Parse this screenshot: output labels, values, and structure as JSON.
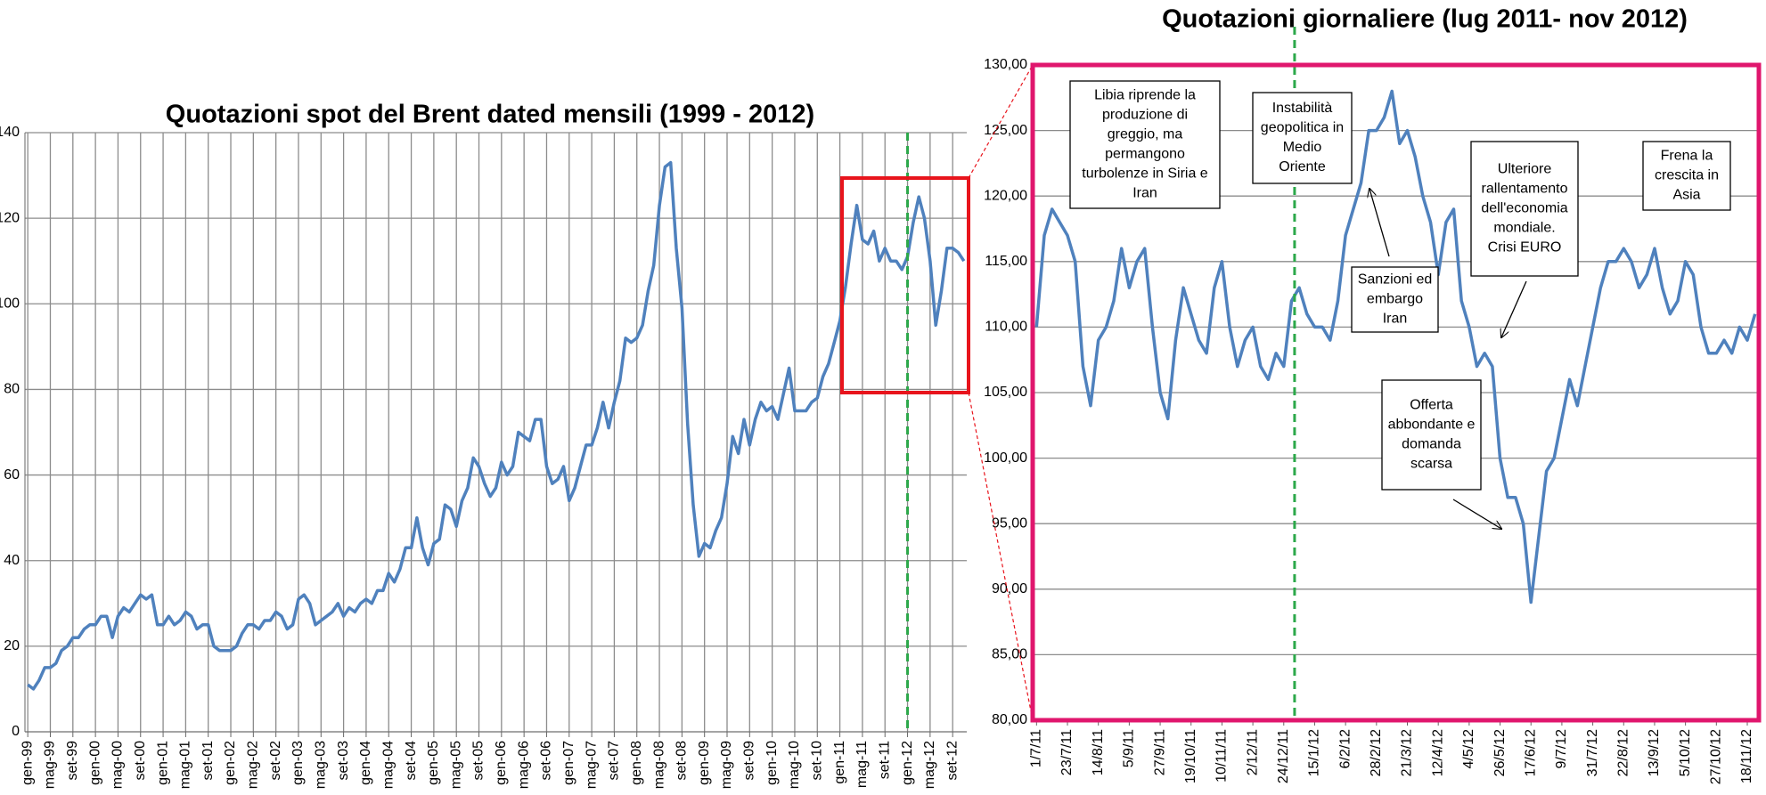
{
  "chart_data": [
    {
      "type": "line",
      "title": "Quotazioni spot del Brent dated mensili  (1999 - 2012)",
      "categories": [
        "gen-99",
        null,
        null,
        null,
        "mag-99",
        null,
        null,
        null,
        "set-99",
        null,
        null,
        null,
        "gen-00",
        null,
        null,
        null,
        "mag-00",
        null,
        null,
        null,
        "set-00",
        null,
        null,
        null,
        "gen-01",
        null,
        null,
        null,
        "mag-01",
        null,
        null,
        null,
        "set-01",
        null,
        null,
        null,
        "gen-02",
        null,
        null,
        null,
        "mag-02",
        null,
        null,
        null,
        "set-02",
        null,
        null,
        null,
        "gen-03",
        null,
        null,
        null,
        "mag-03",
        null,
        null,
        null,
        "set-03",
        null,
        null,
        null,
        "gen-04",
        null,
        null,
        null,
        "mag-04",
        null,
        null,
        null,
        "set-04",
        null,
        null,
        null,
        "gen-05",
        null,
        null,
        null,
        "mag-05",
        null,
        null,
        null,
        "set-05",
        null,
        null,
        null,
        "gen-06",
        null,
        null,
        null,
        "mag-06",
        null,
        null,
        null,
        "set-06",
        null,
        null,
        null,
        "gen-07",
        null,
        null,
        null,
        "mag-07",
        null,
        null,
        null,
        "set-07",
        null,
        null,
        null,
        "gen-08",
        null,
        null,
        null,
        "mag-08",
        null,
        null,
        null,
        "set-08",
        null,
        null,
        null,
        "gen-09",
        null,
        null,
        null,
        "mag-09",
        null,
        null,
        null,
        "set-09",
        null,
        null,
        null,
        "gen-10",
        null,
        null,
        null,
        "mag-10",
        null,
        null,
        null,
        "set-10",
        null,
        null,
        null,
        "gen-11",
        null,
        null,
        null,
        "mag-11",
        null,
        null,
        null,
        "set-11",
        null,
        null,
        null,
        "gen-12",
        null,
        null,
        null,
        "mag-12",
        null,
        null,
        null,
        "set-12",
        null,
        null
      ],
      "series": [
        {
          "name": "Brent",
          "color": "#4f81bd",
          "values": [
            11,
            10,
            12,
            15,
            15,
            16,
            19,
            20,
            22,
            22,
            24,
            25,
            25,
            27,
            27,
            22,
            27,
            29,
            28,
            30,
            32,
            31,
            32,
            25,
            25,
            27,
            25,
            26,
            28,
            27,
            24,
            25,
            25,
            20,
            19,
            19,
            19,
            20,
            23,
            25,
            25,
            24,
            26,
            26,
            28,
            27,
            24,
            25,
            31,
            32,
            30,
            25,
            26,
            27,
            28,
            30,
            27,
            29,
            28,
            30,
            31,
            30,
            33,
            33,
            37,
            35,
            38,
            43,
            43,
            50,
            43,
            39,
            44,
            45,
            53,
            52,
            48,
            54,
            57,
            64,
            62,
            58,
            55,
            57,
            63,
            60,
            62,
            70,
            69,
            68,
            73,
            73,
            62,
            58,
            59,
            62,
            54,
            57,
            62,
            67,
            67,
            71,
            77,
            71,
            77,
            82,
            92,
            91,
            92,
            95,
            103,
            109,
            123,
            132,
            133,
            113,
            99,
            72,
            53,
            41,
            44,
            43,
            47,
            50,
            58,
            69,
            65,
            73,
            67,
            73,
            77,
            75,
            76,
            73,
            79,
            85,
            75,
            75,
            75,
            77,
            78,
            83,
            86,
            91,
            96,
            104,
            114,
            123,
            115,
            114,
            117,
            110,
            113,
            110,
            110,
            108,
            111,
            119,
            125,
            120,
            110,
            95,
            103,
            113,
            113,
            112,
            110
          ]
        }
      ],
      "ylim": [
        0,
        140
      ],
      "yticks": [
        0,
        20,
        40,
        60,
        80,
        100,
        120,
        140
      ],
      "grid": true
    },
    {
      "type": "line",
      "title": "Quotazioni giornaliere (lug 2011- nov 2012)",
      "categories": [
        "1/7/11",
        null,
        null,
        null,
        "23/7/11",
        null,
        null,
        null,
        "14/8/11",
        null,
        null,
        null,
        "5/9/11",
        null,
        null,
        null,
        "27/9/11",
        null,
        null,
        null,
        "19/10/11",
        null,
        null,
        null,
        "10/11/11",
        null,
        null,
        null,
        "2/12/11",
        null,
        null,
        null,
        "24/12/11",
        null,
        null,
        null,
        "15/1/12",
        null,
        null,
        null,
        "6/2/12",
        null,
        null,
        null,
        "28/2/12",
        null,
        null,
        null,
        "21/3/12",
        null,
        null,
        null,
        "12/4/12",
        null,
        null,
        null,
        "4/5/12",
        null,
        null,
        null,
        "26/5/12",
        null,
        null,
        null,
        "17/6/12",
        null,
        null,
        null,
        "9/7/12",
        null,
        null,
        null,
        "31/7/12",
        null,
        null,
        null,
        "22/8/12",
        null,
        null,
        null,
        "13/9/12",
        null,
        null,
        null,
        "5/10/12",
        null,
        null,
        null,
        "27/10/12",
        null,
        null,
        null,
        "18/11/12",
        null
      ],
      "series": [
        {
          "name": "Brent",
          "color": "#4f81bd",
          "values": [
            110,
            117,
            119,
            118,
            117,
            115,
            107,
            104,
            109,
            110,
            112,
            116,
            113,
            115,
            116,
            110,
            105,
            103,
            109,
            113,
            111,
            109,
            108,
            113,
            115,
            110,
            107,
            109,
            110,
            107,
            106,
            108,
            107,
            112,
            113,
            111,
            110,
            110,
            109,
            112,
            117,
            119,
            121,
            125,
            125,
            126,
            128,
            124,
            125,
            123,
            120,
            118,
            114,
            118,
            119,
            112,
            110,
            107,
            108,
            107,
            100,
            97,
            97,
            95,
            89,
            94,
            99,
            100,
            103,
            106,
            104,
            107,
            110,
            113,
            115,
            115,
            116,
            115,
            113,
            114,
            116,
            113,
            111,
            112,
            115,
            114,
            110,
            108,
            108,
            109,
            108,
            110,
            109,
            111
          ]
        }
      ],
      "ylim": [
        80,
        130
      ],
      "yticks": [
        {
          "value": 80,
          "label": "80,00"
        },
        {
          "value": 85,
          "label": "85,00"
        },
        {
          "value": 90,
          "label": "90,00"
        },
        {
          "value": 95,
          "label": "95,00"
        },
        {
          "value": 100,
          "label": "100,00"
        },
        {
          "value": 105,
          "label": "105,00"
        },
        {
          "value": 110,
          "label": "110,00"
        },
        {
          "value": 115,
          "label": "115,00"
        },
        {
          "value": 120,
          "label": "120,00"
        },
        {
          "value": 125,
          "label": "125,00"
        },
        {
          "value": 130,
          "label": "130,00"
        }
      ],
      "grid": true,
      "annotations": [
        {
          "lines": [
            "Libia riprende la",
            "produzione di",
            "greggio, ma",
            "permangono",
            "turbolenze in Siria e",
            "Iran"
          ]
        },
        {
          "lines": [
            "Instabilità",
            "geopolitica in",
            "Medio",
            "Oriente"
          ]
        },
        {
          "lines": [
            "Sanzioni ed",
            "embargo",
            "Iran"
          ]
        },
        {
          "lines": [
            "Ulteriore",
            "rallentamento",
            "dell'economia",
            "mondiale.",
            "Crisi EURO"
          ]
        },
        {
          "lines": [
            "Offerta",
            "abbondante e",
            "domanda",
            "scarsa"
          ]
        },
        {
          "lines": [
            "Frena la",
            "crescita in",
            "Asia"
          ]
        }
      ]
    }
  ]
}
